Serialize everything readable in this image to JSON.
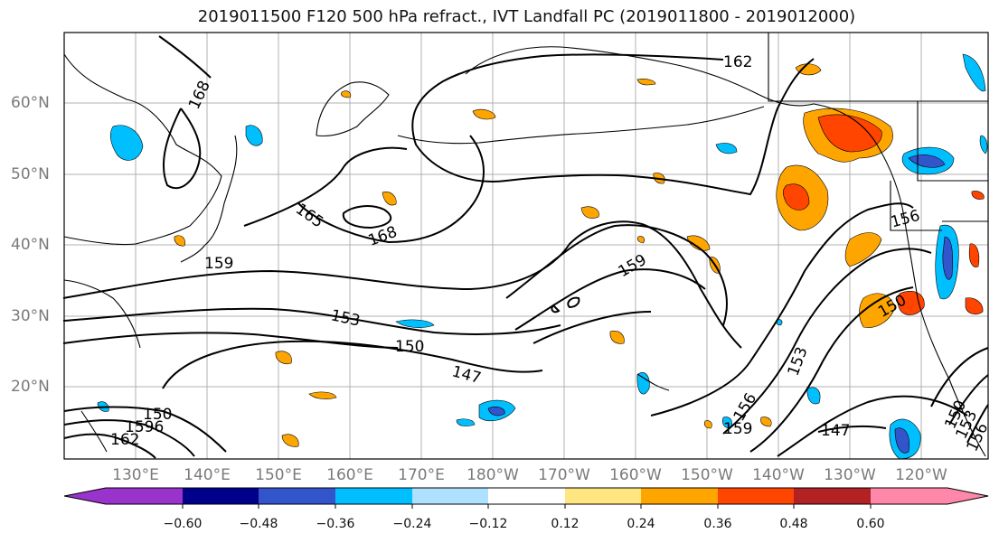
{
  "title": "2019011500 F120 500 hPa refract., IVT Landfall PC (2019011800 - 2019012000)",
  "map": {
    "lat_labels": [
      "60°N",
      "50°N",
      "40°N",
      "30°N",
      "20°N"
    ],
    "lon_labels": [
      "130°E",
      "140°E",
      "150°E",
      "160°E",
      "170°E",
      "180°W",
      "170°W",
      "160°W",
      "150°W",
      "140°W",
      "130°W",
      "120°W"
    ],
    "contour_labels": [
      "162",
      "168",
      "165",
      "168",
      "159",
      "159",
      "156",
      "153",
      "150",
      "150",
      "147",
      "153",
      "150",
      "147",
      "150",
      "153",
      "156",
      "159",
      "156",
      "150",
      "1596",
      "162",
      "153"
    ],
    "grid": true,
    "coastline_color": "#000000",
    "contour_color": "#000000"
  },
  "colorbar": {
    "tick_labels": [
      "−0.60",
      "−0.48",
      "−0.36",
      "−0.24",
      "−0.12",
      "0.12",
      "0.24",
      "0.36",
      "0.48",
      "0.60"
    ],
    "colors": [
      "#9933cc",
      "#00008b",
      "#3355cc",
      "#00bfff",
      "#aee0ff",
      "#ffffff",
      "#ffe680",
      "#ffa500",
      "#ff4500",
      "#b22222",
      "#ff88aa"
    ]
  }
}
